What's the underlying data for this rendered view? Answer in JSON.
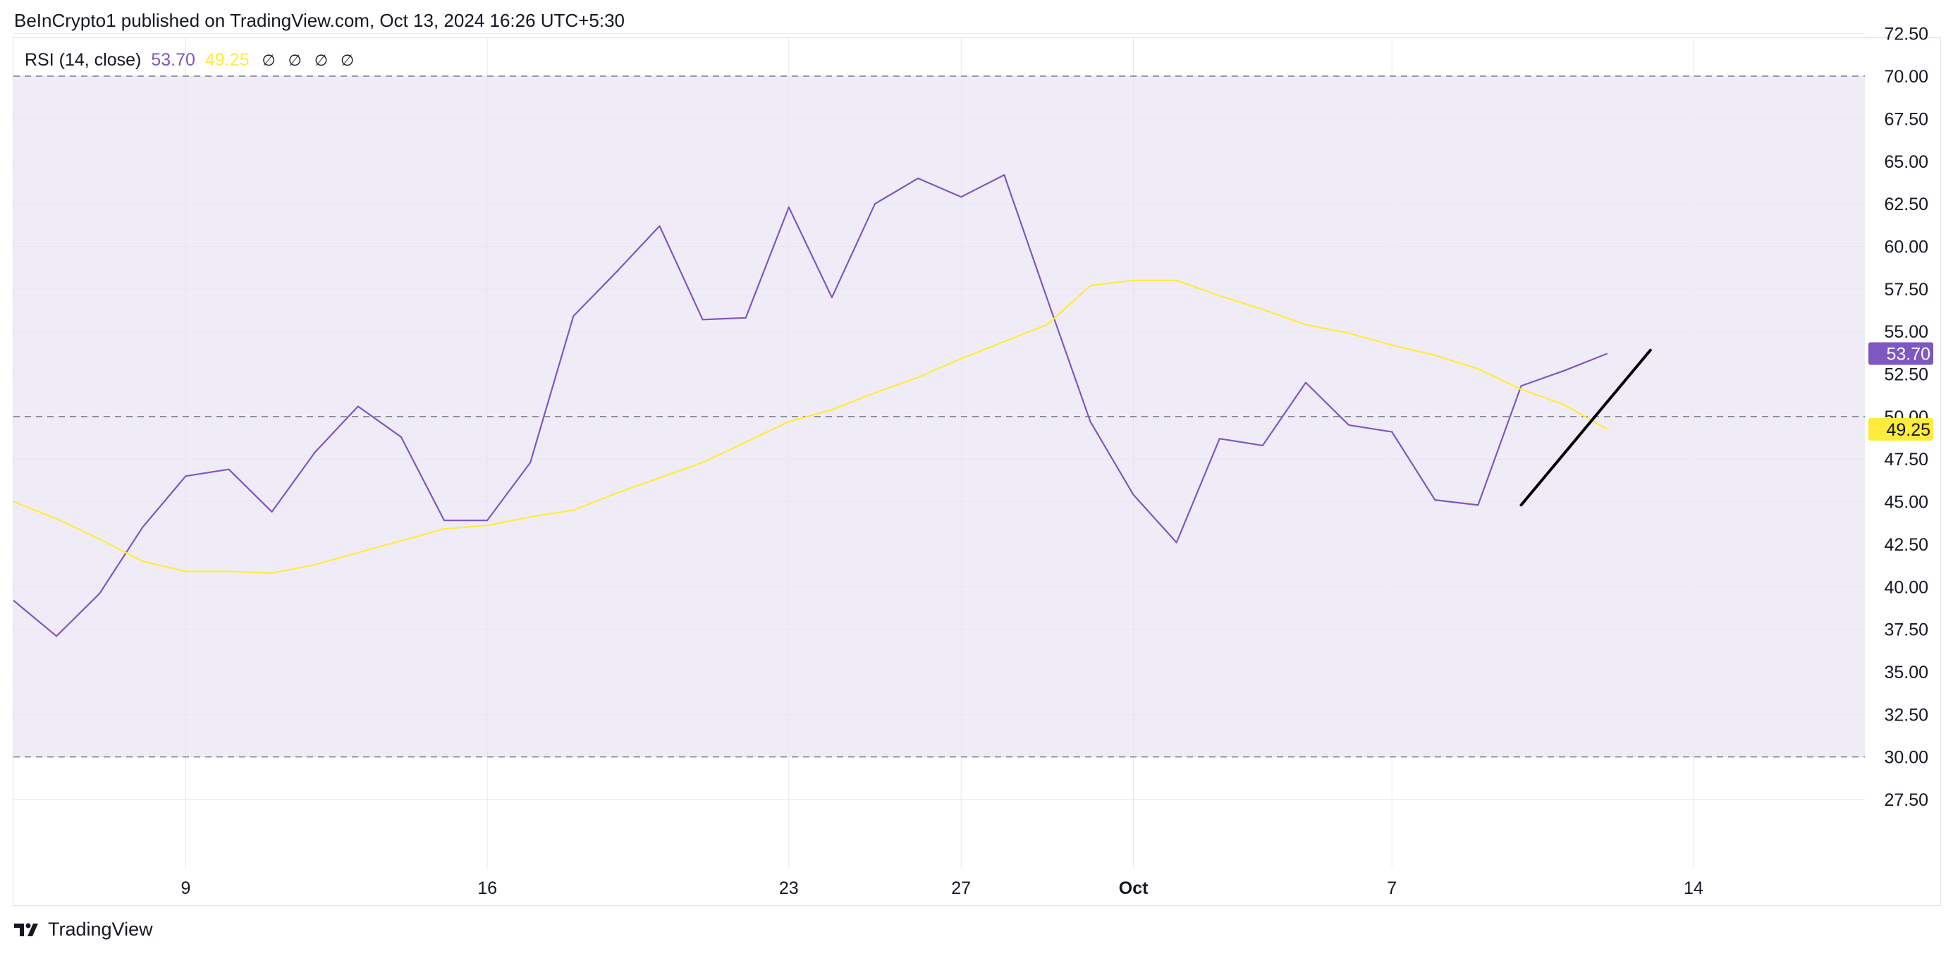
{
  "header": {
    "text": "BeInCrypto1 published on TradingView.com, Oct 13, 2024 16:26 UTC+5:30"
  },
  "legend": {
    "indicator": "RSI (14, close)",
    "value_rsi": "53.70",
    "value_ma": "49.25",
    "empty_values": [
      "∅",
      "∅",
      "∅",
      "∅"
    ]
  },
  "footer": {
    "brand": "TradingView",
    "logo_icon": "tradingview-logo-icon"
  },
  "colors": {
    "rsi": "#7e57c2",
    "ma": "#ffeb3b",
    "band_fill": "#f0ecf7",
    "band_lines": "#787b86",
    "trendline": "#000000",
    "grid": "#e8e6ee"
  },
  "chart_data": {
    "type": "line",
    "x_tick_labels": [
      "9",
      "16",
      "23",
      "27",
      "Oct",
      "7",
      "14"
    ],
    "y_tick_labels": [
      "72.50",
      "70.00",
      "67.50",
      "65.00",
      "62.50",
      "60.00",
      "57.50",
      "55.00",
      "52.50",
      "50.00",
      "47.50",
      "45.00",
      "42.50",
      "40.00",
      "37.50",
      "35.00",
      "32.50",
      "30.00",
      "27.50"
    ],
    "ylim": [
      26.5,
      73.5
    ],
    "bands": {
      "upper": 70,
      "middle": 50,
      "lower": 30
    },
    "x": [
      "2024-09-05",
      "2024-09-06",
      "2024-09-07",
      "2024-09-08",
      "2024-09-09",
      "2024-09-10",
      "2024-09-11",
      "2024-09-12",
      "2024-09-13",
      "2024-09-14",
      "2024-09-15",
      "2024-09-16",
      "2024-09-17",
      "2024-09-18",
      "2024-09-19",
      "2024-09-20",
      "2024-09-21",
      "2024-09-22",
      "2024-09-23",
      "2024-09-24",
      "2024-09-25",
      "2024-09-26",
      "2024-09-27",
      "2024-09-28",
      "2024-09-29",
      "2024-09-30",
      "2024-10-01",
      "2024-10-02",
      "2024-10-03",
      "2024-10-04",
      "2024-10-05",
      "2024-10-06",
      "2024-10-07",
      "2024-10-08",
      "2024-10-09",
      "2024-10-10",
      "2024-10-11",
      "2024-10-12",
      "2024-10-13"
    ],
    "series": [
      {
        "name": "RSI",
        "values": [
          39.2,
          37.1,
          39.6,
          43.5,
          46.5,
          46.9,
          44.4,
          47.9,
          50.6,
          48.8,
          43.9,
          43.9,
          47.3,
          55.9,
          58.5,
          61.2,
          55.7,
          55.8,
          62.3,
          57.0,
          62.5,
          64.0,
          62.9,
          64.2,
          56.9,
          49.7,
          45.4,
          42.6,
          48.7,
          48.3,
          52.0,
          49.5,
          49.1,
          45.1,
          44.8,
          51.8,
          52.7,
          53.7,
          null
        ],
        "color": "#7e57c2"
      },
      {
        "name": "RSI-based MA",
        "values": [
          45.0,
          44.0,
          42.8,
          41.5,
          40.9,
          40.9,
          40.8,
          41.3,
          42.0,
          42.7,
          43.4,
          43.6,
          44.1,
          44.5,
          45.5,
          46.4,
          47.3,
          48.5,
          49.7,
          50.4,
          51.4,
          52.3,
          53.4,
          54.4,
          55.4,
          57.7,
          58.0,
          58.0,
          57.1,
          56.3,
          55.4,
          54.9,
          54.2,
          53.6,
          52.8,
          51.6,
          50.7,
          49.25,
          null
        ],
        "color": "#ffeb3b"
      }
    ],
    "trendline": {
      "from": {
        "x": "2024-10-10",
        "y": 44.8
      },
      "to": {
        "x": "2024-10-13",
        "y": 53.9
      }
    },
    "last_value_labels": {
      "rsi": "53.70",
      "ma": "49.25"
    },
    "grid": true
  }
}
